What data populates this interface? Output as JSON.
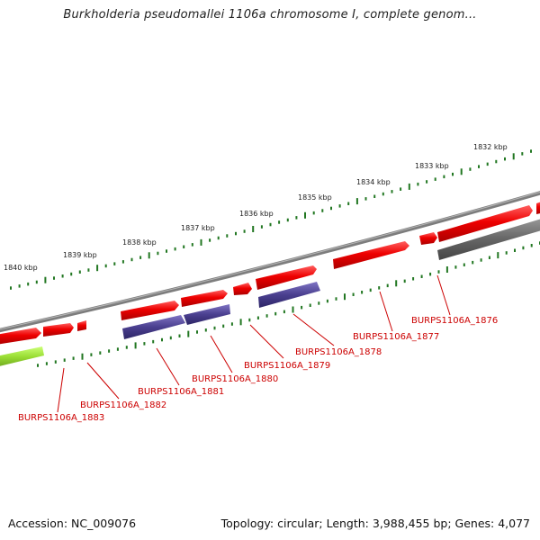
{
  "title": "Burkholderia pseudomallei 1106a chromosome I, complete genom...",
  "footer": {
    "accession": "Accession: NC_009076",
    "summary": "Topology: circular; Length: 3,988,455 bp; Genes: 4,077"
  },
  "colors": {
    "backbone": "#808080",
    "gene_forward": "#ee0000",
    "gene_other": "#4a3f8f",
    "gene_gray": "#666666",
    "gene_green": "#99dd33",
    "ticks": "#227722",
    "label": "#cc0000"
  },
  "kbp_markers": [
    "1840 kbp",
    "1839 kbp",
    "1838 kbp",
    "1837 kbp",
    "1836 kbp",
    "1835 kbp",
    "1834 kbp",
    "1833 kbp",
    "1832 kbp"
  ],
  "gene_labels": [
    "BURPS1106A_1883",
    "BURPS1106A_1882",
    "BURPS1106A_1881",
    "BURPS1106A_1880",
    "BURPS1106A_1879",
    "BURPS1106A_1878",
    "BURPS1106A_1877",
    "BURPS1106A_1876"
  ]
}
